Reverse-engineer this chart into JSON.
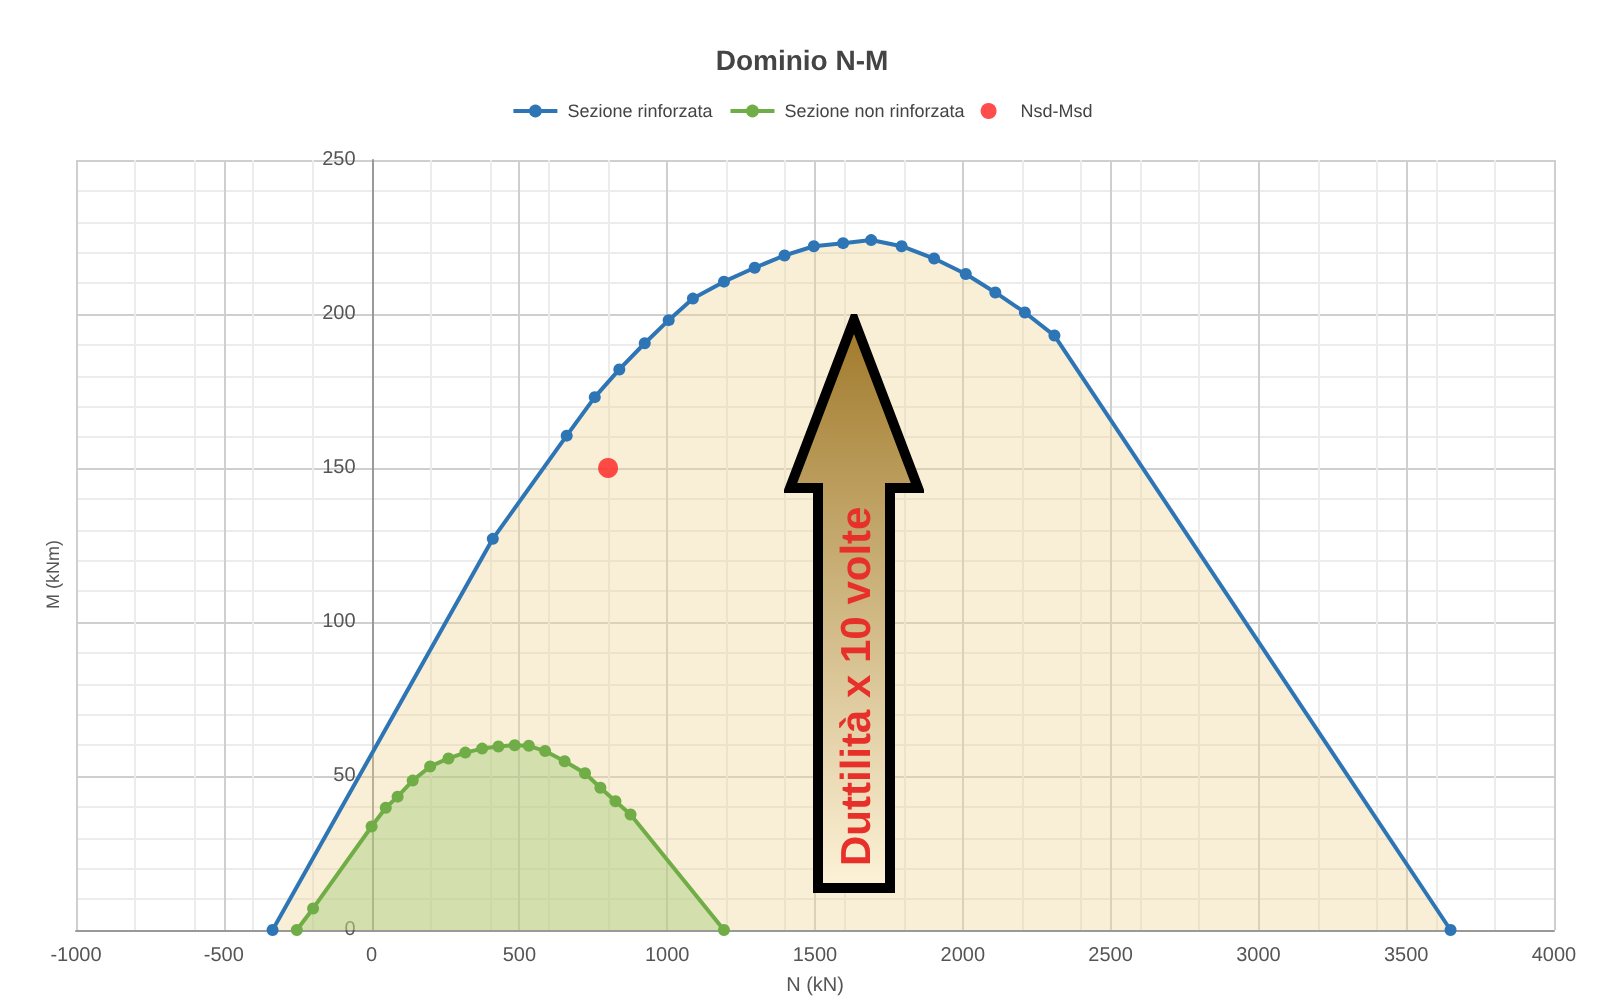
{
  "chart_data": {
    "type": "area",
    "title": "Dominio N-M",
    "xlabel": "N (kN)",
    "ylabel": "M (kNm)",
    "annotations": [
      "Duttilità x 10 volte"
    ],
    "series": [
      {
        "name": "Sezione rinforzata",
        "color": "#2e75b6",
        "x": [
          -335,
          410,
          660,
          755,
          838,
          924,
          1005,
          1087,
          1192,
          1296,
          1397,
          1496,
          1595,
          1690,
          1793,
          1903,
          2010,
          2110,
          2210,
          2310,
          3650
        ],
        "values": [
          0,
          127,
          160.5,
          173,
          182,
          190.5,
          198,
          205,
          210.5,
          215,
          219,
          222,
          223,
          224,
          222,
          218,
          213,
          207,
          200.5,
          193,
          0
        ]
      },
      {
        "name": "Sezione non rinforzata",
        "color": "#70ad47",
        "x": [
          -253,
          -198,
          0,
          48,
          88,
          139,
          198,
          260,
          317,
          374,
          429,
          484,
          532,
          587,
          653,
          722,
          774,
          825,
          876,
          1192
        ],
        "values": [
          0,
          7,
          33.6,
          39.7,
          43.3,
          48.5,
          53.1,
          55.7,
          57.6,
          58.9,
          59.6,
          60,
          59.8,
          58.1,
          54.8,
          50.9,
          46.2,
          41.8,
          37.5,
          0
        ]
      },
      {
        "name": "Nsd-Msd",
        "type": "scatter",
        "color": "#ff2020",
        "x": [
          800
        ],
        "values": [
          150
        ]
      }
    ],
    "xlim": [
      -1000,
      4000
    ],
    "xticks": [
      -1000,
      -500,
      0,
      500,
      1000,
      1500,
      2000,
      2500,
      3000,
      3500,
      4000
    ],
    "ylim": [
      0,
      250
    ],
    "yticks": [
      0,
      50,
      100,
      150,
      200,
      250
    ],
    "grid": true,
    "legend": "top",
    "marker": "circle"
  }
}
